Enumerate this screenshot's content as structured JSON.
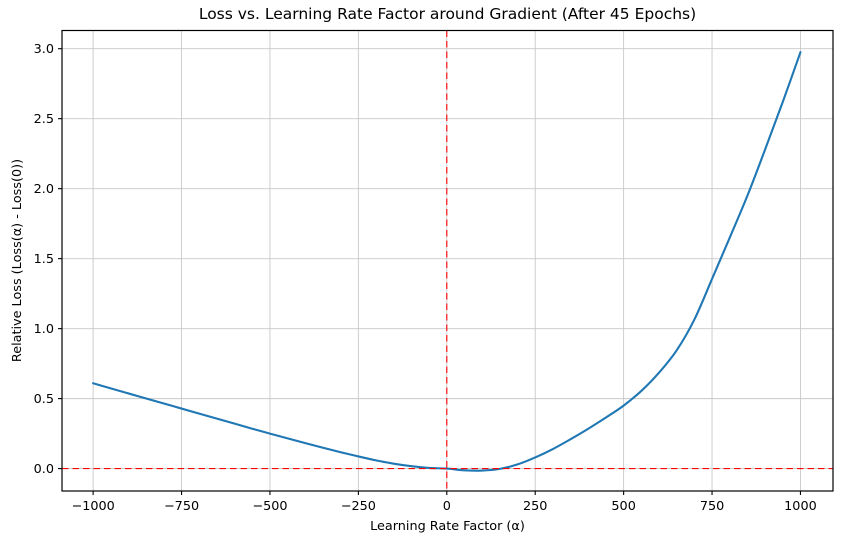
{
  "chart_data": {
    "type": "line",
    "title": "Loss vs. Learning Rate Factor around Gradient (After 45 Epochs)",
    "xlabel": "Learning Rate Factor (α)",
    "ylabel": "Relative Loss (Loss(α) - Loss(0))",
    "xlim": [
      -1088,
      1092
    ],
    "ylim": [
      -0.16,
      3.13
    ],
    "grid": true,
    "legend": "none",
    "colors": {
      "curve": "#1f77b4",
      "reference": "#ff0000",
      "grid": "#c8c8c8",
      "spine": "#000000",
      "background": "#ffffff"
    },
    "xticks": {
      "values": [
        -1000,
        -750,
        -500,
        -250,
        0,
        250,
        500,
        750,
        1000
      ],
      "labels": [
        "−1000",
        "−750",
        "−500",
        "−250",
        "0",
        "250",
        "500",
        "750",
        "1000"
      ]
    },
    "yticks": {
      "values": [
        0.0,
        0.5,
        1.0,
        1.5,
        2.0,
        2.5,
        3.0
      ],
      "labels": [
        "0.0",
        "0.5",
        "1.0",
        "1.5",
        "2.0",
        "2.5",
        "3.0"
      ]
    },
    "series": [
      {
        "name": "relative-loss-curve",
        "color": "#1f77b4",
        "points": [
          [
            -1000,
            0.61
          ],
          [
            -950,
            0.573
          ],
          [
            -900,
            0.537
          ],
          [
            -850,
            0.501
          ],
          [
            -800,
            0.465
          ],
          [
            -750,
            0.429
          ],
          [
            -700,
            0.393
          ],
          [
            -650,
            0.357
          ],
          [
            -600,
            0.321
          ],
          [
            -550,
            0.285
          ],
          [
            -500,
            0.25
          ],
          [
            -450,
            0.216
          ],
          [
            -400,
            0.182
          ],
          [
            -350,
            0.149
          ],
          [
            -300,
            0.117
          ],
          [
            -250,
            0.087
          ],
          [
            -200,
            0.059
          ],
          [
            -150,
            0.035
          ],
          [
            -100,
            0.017
          ],
          [
            -50,
            0.005
          ],
          [
            0,
            0.0
          ],
          [
            50,
            -0.012
          ],
          [
            100,
            -0.014
          ],
          [
            150,
            -0.002
          ],
          [
            200,
            0.03
          ],
          [
            250,
            0.08
          ],
          [
            300,
            0.14
          ],
          [
            350,
            0.21
          ],
          [
            400,
            0.285
          ],
          [
            450,
            0.365
          ],
          [
            500,
            0.45
          ],
          [
            550,
            0.555
          ],
          [
            600,
            0.685
          ],
          [
            650,
            0.845
          ],
          [
            700,
            1.065
          ],
          [
            750,
            1.355
          ],
          [
            800,
            1.65
          ],
          [
            850,
            1.95
          ],
          [
            900,
            2.28
          ],
          [
            950,
            2.62
          ],
          [
            1000,
            2.975
          ]
        ]
      }
    ],
    "reference_lines": [
      {
        "name": "zero-loss-line",
        "orientation": "horizontal",
        "value": 0,
        "color": "#ff0000",
        "style": "dashed"
      },
      {
        "name": "zero-alpha-line",
        "orientation": "vertical",
        "value": 0,
        "color": "#ff0000",
        "style": "dashed"
      }
    ]
  }
}
